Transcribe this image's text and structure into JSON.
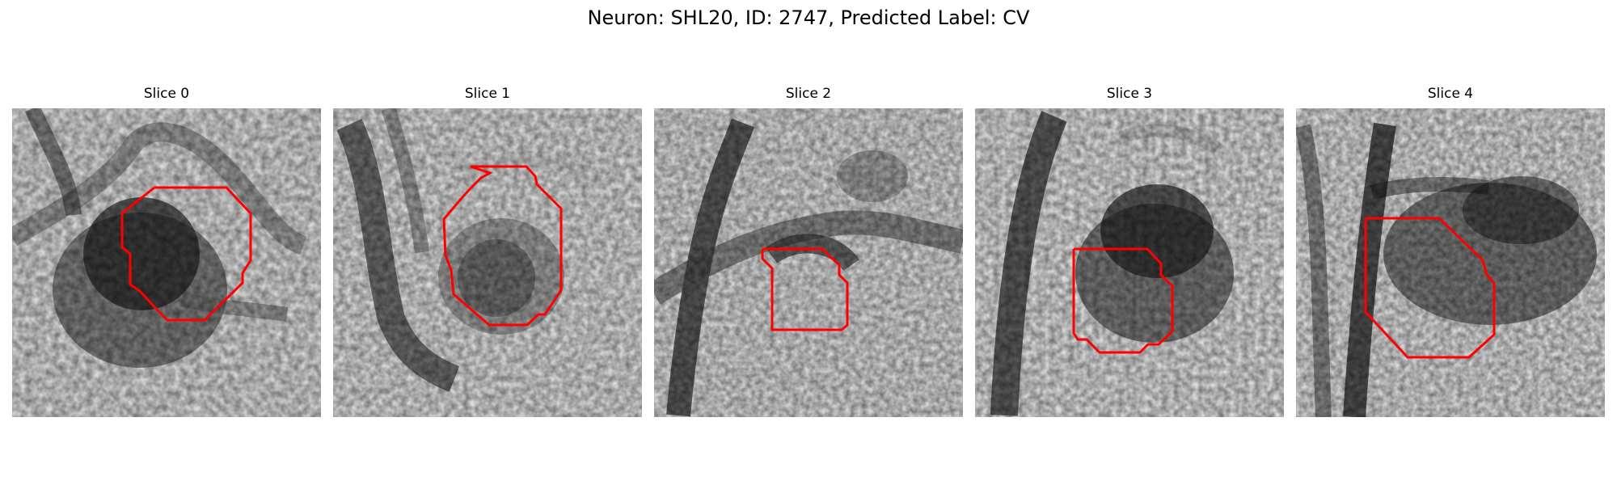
{
  "title": "Neuron: SHL20, ID: 2747, Predicted Label: CV",
  "panels": [
    {
      "title": "Slice 0"
    },
    {
      "title": "Slice 1"
    },
    {
      "title": "Slice 2"
    },
    {
      "title": "Slice 3"
    },
    {
      "title": "Slice 4"
    }
  ],
  "colors": {
    "outline": "#ff0000",
    "colormap": "grayscale"
  }
}
